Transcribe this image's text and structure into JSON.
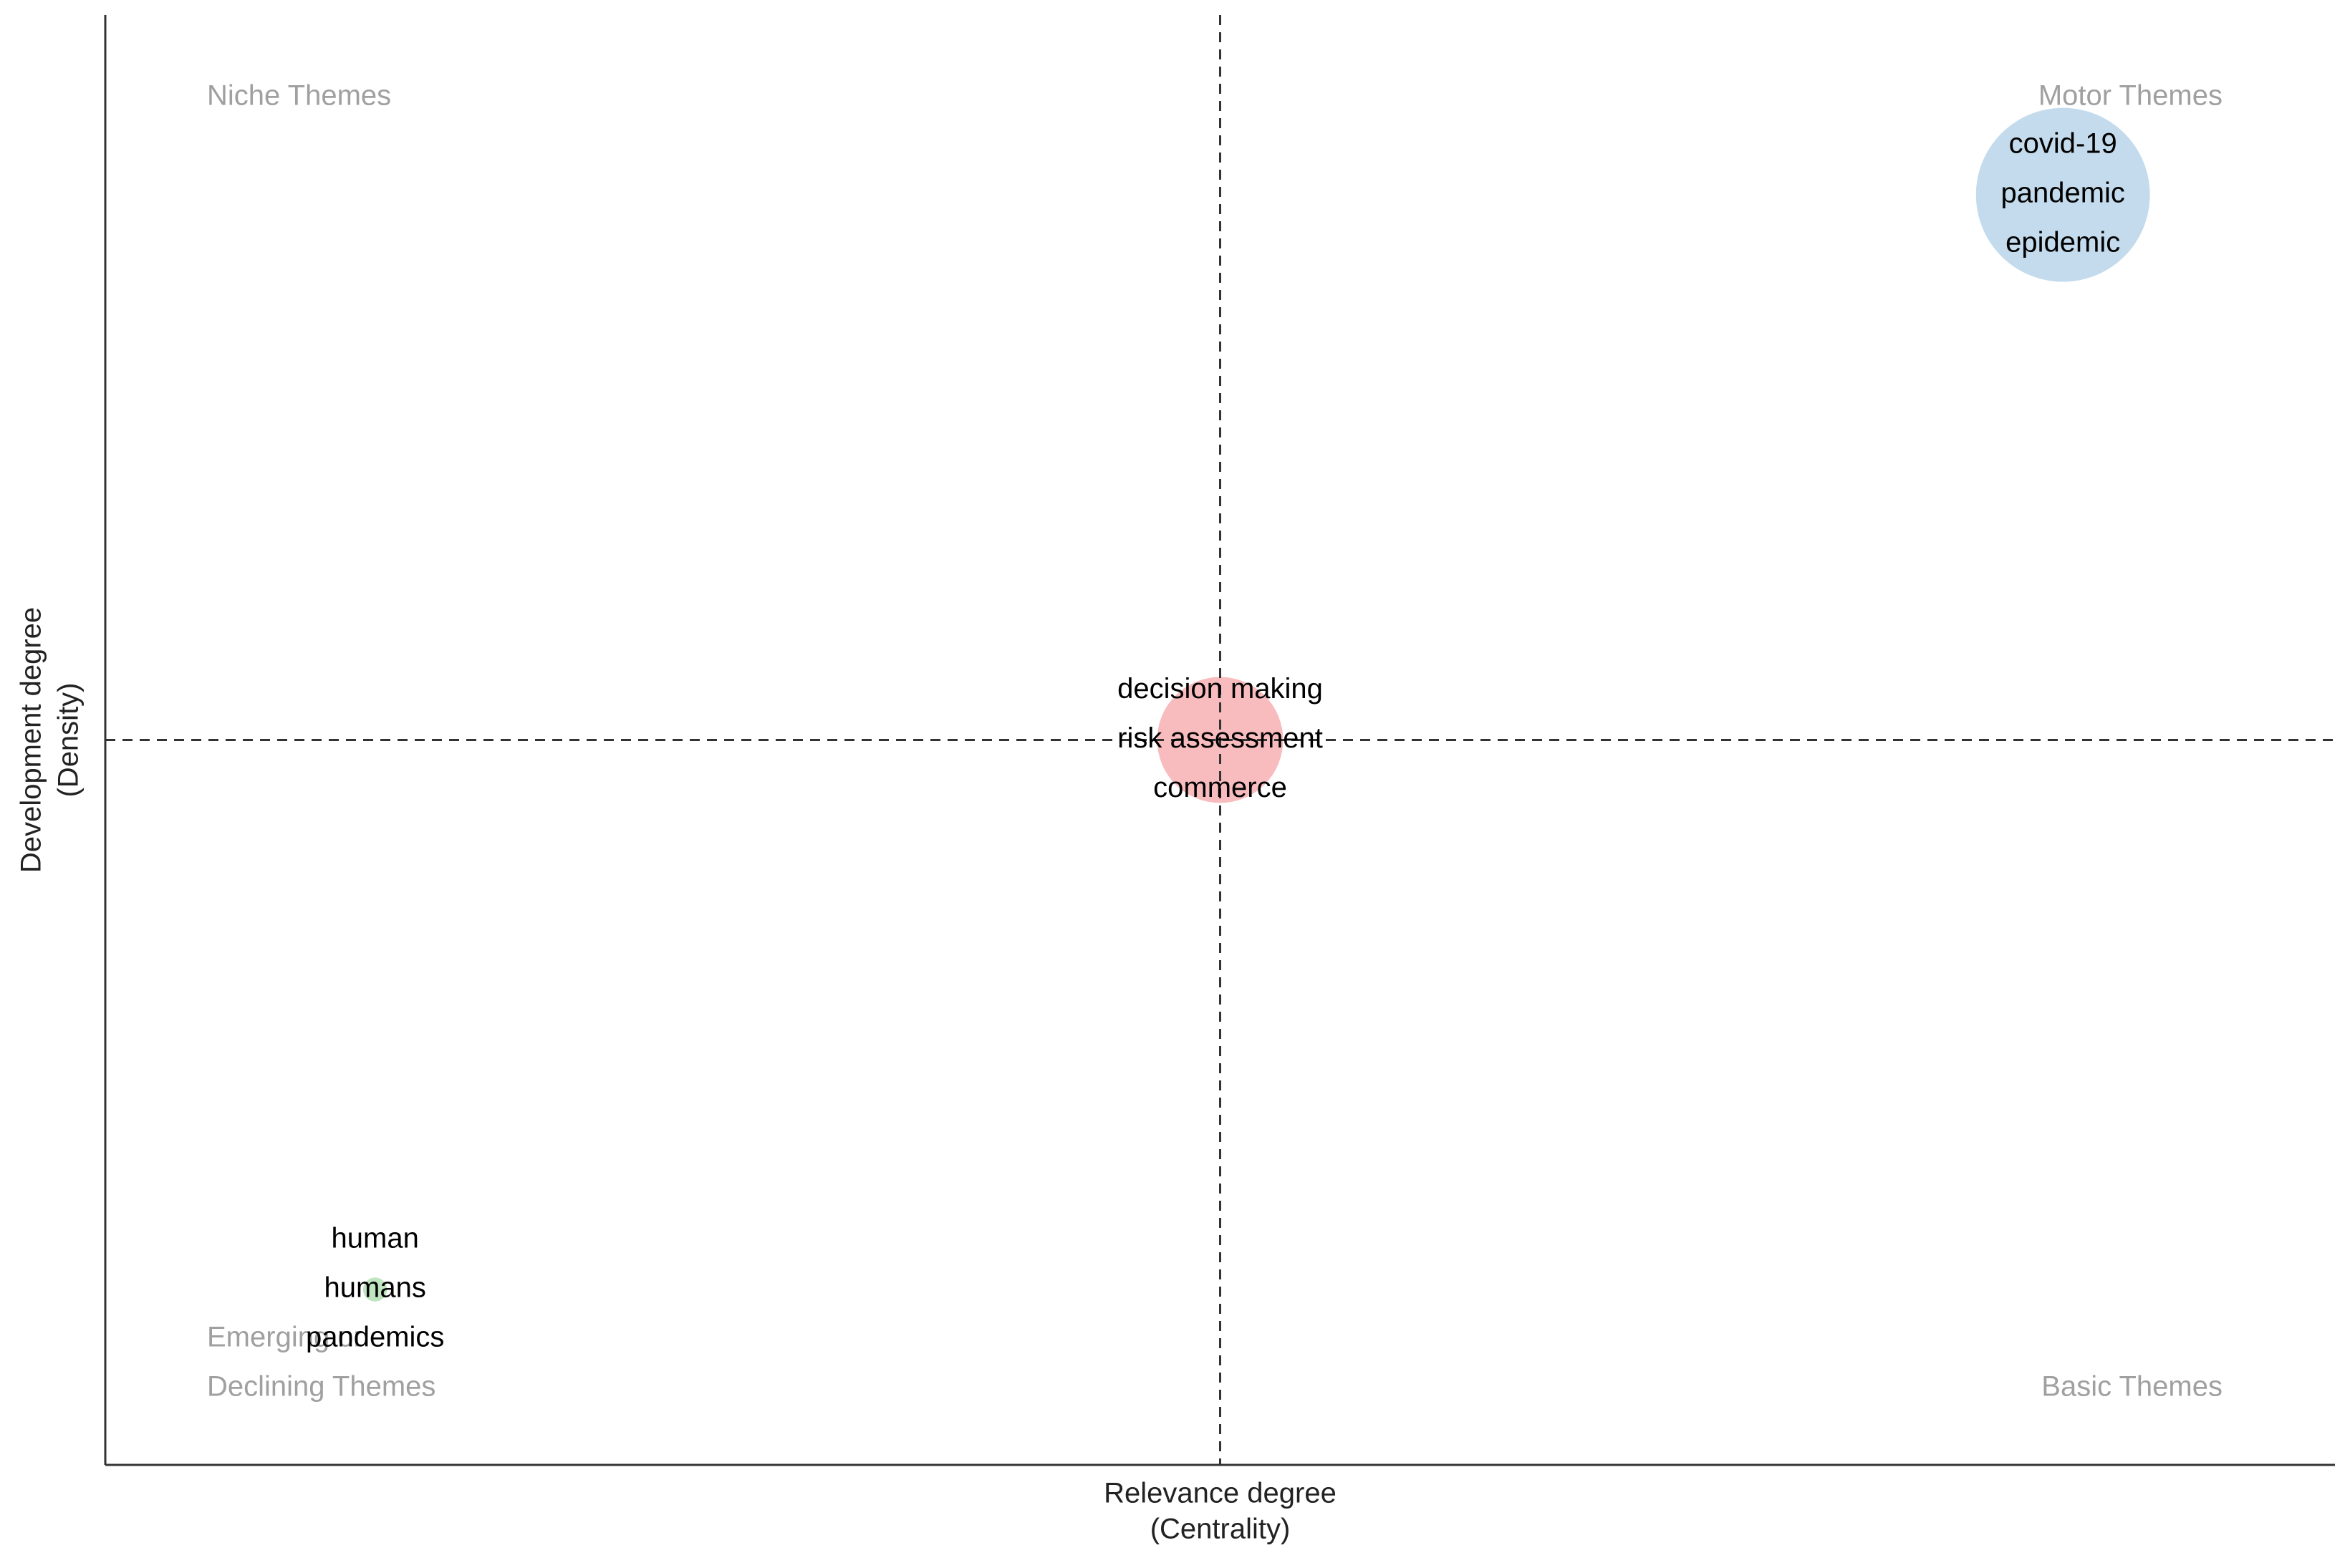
{
  "chart_data": {
    "type": "scatter",
    "x_label": [
      "Relevance degree",
      "(Centrality)"
    ],
    "y_label": [
      "Development degree",
      "(Density)"
    ],
    "quadrants": {
      "top_left": [
        "Niche Themes"
      ],
      "top_right": [
        "Motor Themes"
      ],
      "bottom_left": [
        "Emerging or",
        "Declining Themes"
      ],
      "bottom_right": [
        "Basic Themes"
      ]
    },
    "xlim": [
      0,
      100
    ],
    "ylim": [
      0,
      100
    ],
    "vline": 50,
    "hline": 50,
    "points": [
      {
        "x": 87.8,
        "y": 87.6,
        "size": 58,
        "color": "#c3dbec",
        "labels": [
          "covid-19",
          "pandemic",
          "epidemic"
        ]
      },
      {
        "x": 50,
        "y": 50,
        "size": 42,
        "color": "#f9bcbe",
        "labels": [
          "decision making",
          "risk assessment",
          "commerce"
        ]
      },
      {
        "x": 12.1,
        "y": 12.1,
        "size": 8,
        "color": "#bfe5bf",
        "labels": [
          "human",
          "humans",
          "pandemics"
        ]
      }
    ]
  }
}
